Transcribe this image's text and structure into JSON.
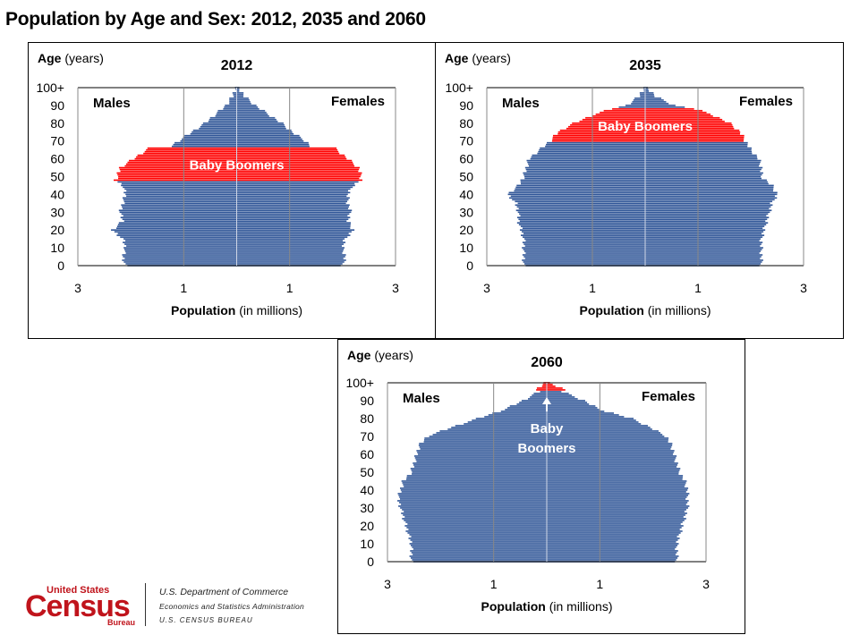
{
  "page": {
    "title": "Population by Age and Sex: 2012, 2035 and 2060"
  },
  "colors": {
    "bar_blue": "#2f5597",
    "bar_red": "#ff0000",
    "grid": "#888888"
  },
  "chart_data": [
    {
      "type": "bar",
      "orientation": "horizontal-pyramid",
      "title": "2012",
      "ylabel_bold": "Age",
      "ylabel_rest": " (years)",
      "xlabel_bold": "Population",
      "xlabel_rest": " (in millions)",
      "x_tick_labels": [
        "3",
        "1",
        "1",
        "3"
      ],
      "x_ticks": [
        -3,
        -1,
        1,
        3
      ],
      "y_tick_labels": [
        "0",
        "10",
        "20",
        "30",
        "40",
        "50",
        "60",
        "70",
        "80",
        "90",
        "100+"
      ],
      "ylim": [
        0,
        100
      ],
      "left_label": "Males",
      "right_label": "Females",
      "annotation": "Baby Boomers",
      "highlight_ages": [
        48,
        66
      ],
      "ages": [
        0,
        5,
        10,
        15,
        20,
        25,
        30,
        35,
        40,
        45,
        48,
        50,
        55,
        60,
        66,
        67,
        70,
        75,
        80,
        85,
        90,
        95,
        100
      ],
      "males": [
        2.1,
        2.15,
        2.1,
        2.15,
        2.35,
        2.15,
        2.2,
        2.15,
        2.1,
        2.15,
        2.3,
        2.25,
        2.2,
        1.95,
        1.65,
        1.25,
        1.1,
        0.85,
        0.6,
        0.4,
        0.2,
        0.08,
        0.02
      ],
      "females": [
        2.0,
        2.05,
        2.0,
        2.05,
        2.2,
        2.1,
        2.15,
        2.1,
        2.1,
        2.2,
        2.35,
        2.35,
        2.3,
        2.1,
        1.85,
        1.4,
        1.3,
        1.05,
        0.85,
        0.6,
        0.35,
        0.15,
        0.04
      ]
    },
    {
      "type": "bar",
      "orientation": "horizontal-pyramid",
      "title": "2035",
      "ylabel_bold": "Age",
      "ylabel_rest": " (years)",
      "xlabel_bold": "Population",
      "xlabel_rest": " (in millions)",
      "x_tick_labels": [
        "3",
        "1",
        "1",
        "3"
      ],
      "x_ticks": [
        -3,
        -1,
        1,
        3
      ],
      "y_tick_labels": [
        "0",
        "10",
        "20",
        "30",
        "40",
        "50",
        "60",
        "70",
        "80",
        "90",
        "100+"
      ],
      "ylim": [
        0,
        100
      ],
      "left_label": "Males",
      "right_label": "Females",
      "annotation": "Baby Boomers",
      "highlight_ages": [
        70,
        88
      ],
      "ages": [
        0,
        5,
        10,
        15,
        20,
        25,
        30,
        35,
        40,
        45,
        50,
        55,
        60,
        65,
        70,
        75,
        80,
        85,
        88,
        90,
        95,
        100
      ],
      "males": [
        2.3,
        2.3,
        2.3,
        2.3,
        2.35,
        2.4,
        2.4,
        2.45,
        2.6,
        2.4,
        2.3,
        2.25,
        2.2,
        2.0,
        1.8,
        1.65,
        1.35,
        0.95,
        0.65,
        0.35,
        0.12,
        0.02
      ],
      "females": [
        2.2,
        2.2,
        2.2,
        2.2,
        2.25,
        2.3,
        2.35,
        2.4,
        2.5,
        2.4,
        2.2,
        2.2,
        2.15,
        2.0,
        1.9,
        1.8,
        1.6,
        1.25,
        0.95,
        0.55,
        0.2,
        0.04
      ]
    },
    {
      "type": "bar",
      "orientation": "horizontal-pyramid",
      "title": "2060",
      "ylabel_bold": "Age",
      "ylabel_rest": " (years)",
      "xlabel_bold": "Population",
      "xlabel_rest": " (in millions)",
      "x_tick_labels": [
        "3",
        "1",
        "1",
        "3"
      ],
      "x_ticks": [
        -3,
        -1,
        1,
        3
      ],
      "y_tick_labels": [
        "0",
        "10",
        "20",
        "30",
        "40",
        "50",
        "60",
        "70",
        "80",
        "90",
        "100+"
      ],
      "ylim": [
        0,
        100
      ],
      "left_label": "Males",
      "right_label": "Females",
      "annotation": "Baby Boomers",
      "annotation_lines": [
        "Baby",
        "Boomers"
      ],
      "highlight_ages": [
        96,
        100
      ],
      "ages": [
        0,
        5,
        10,
        15,
        20,
        25,
        30,
        35,
        40,
        45,
        50,
        55,
        60,
        65,
        70,
        75,
        80,
        85,
        90,
        95,
        96,
        100
      ],
      "males": [
        2.55,
        2.55,
        2.55,
        2.6,
        2.65,
        2.7,
        2.75,
        2.8,
        2.75,
        2.7,
        2.55,
        2.5,
        2.45,
        2.4,
        2.25,
        1.8,
        1.3,
        0.8,
        0.45,
        0.15,
        0.2,
        0.05
      ],
      "females": [
        2.45,
        2.45,
        2.45,
        2.5,
        2.55,
        2.6,
        2.65,
        2.65,
        2.65,
        2.6,
        2.5,
        2.45,
        2.4,
        2.35,
        2.25,
        1.95,
        1.6,
        1.0,
        0.7,
        0.3,
        0.35,
        0.05
      ]
    }
  ],
  "footer": {
    "logo_top": "United States",
    "logo_main": "Census",
    "logo_bottom": "Bureau",
    "dept_line_1": "U.S. Department of Commerce",
    "dept_line_2": "Economics and Statistics Administration",
    "dept_line_3": "U.S. CENSUS BUREAU"
  }
}
